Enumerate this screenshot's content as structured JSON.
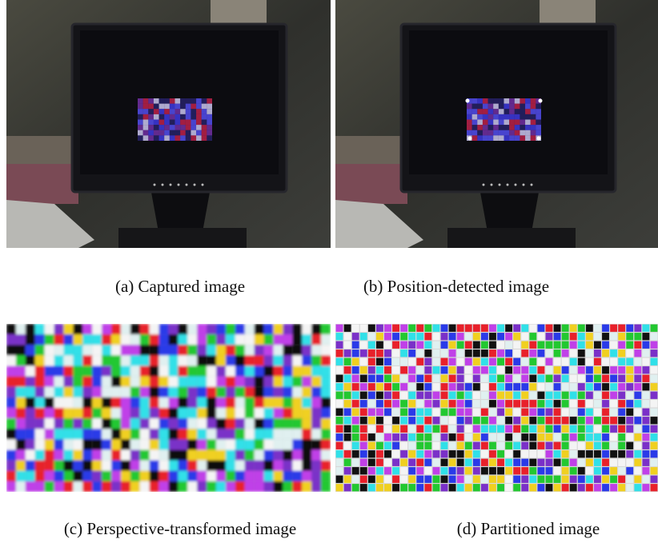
{
  "figure": {
    "panels": [
      {
        "caption": "(a) Captured image"
      },
      {
        "caption": "(b) Position-detected image"
      },
      {
        "caption": "(c) Perspective-transformed image"
      },
      {
        "caption": "(d) Partitioned image"
      }
    ]
  }
}
